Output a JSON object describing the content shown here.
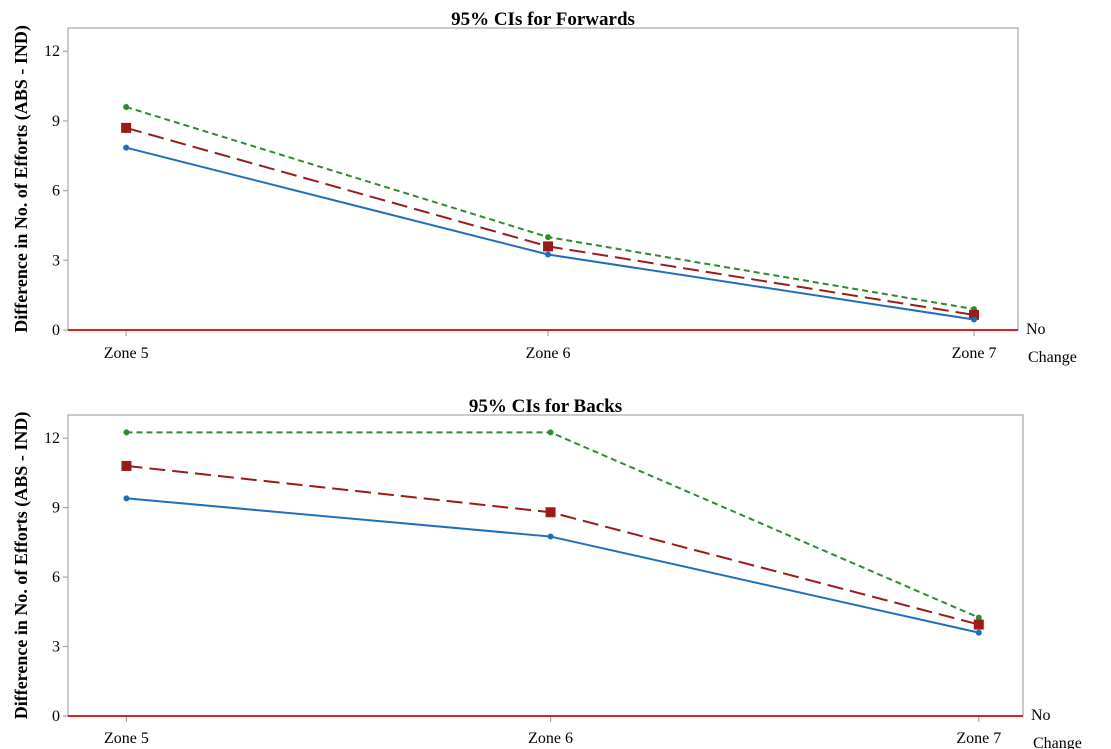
{
  "colors": {
    "lower": "#1f6fb8",
    "mean": "#9b1a1a",
    "upper": "#2e8b2e",
    "reference": "#e02020",
    "frame": "#a6a6a6"
  },
  "no_change_label": [
    "No",
    "Change"
  ],
  "chart_data": [
    {
      "type": "line",
      "title": "95% CIs for Forwards",
      "ylabel": "Difference in No. of Efforts (ABS - IND)",
      "xlabel": "",
      "categories": [
        "Zone 5",
        "Zone 6",
        "Zone 7"
      ],
      "ylim": [
        0,
        13
      ],
      "yticks": [
        0,
        3,
        6,
        9,
        12
      ],
      "reference_line": 0,
      "grid": false,
      "series": [
        {
          "key": "upper",
          "style": "short-dash",
          "marker": "dot",
          "values": [
            9.6,
            4.0,
            0.9
          ]
        },
        {
          "key": "mean",
          "style": "long-dash",
          "marker": "square",
          "values": [
            8.7,
            3.6,
            0.65
          ]
        },
        {
          "key": "lower",
          "style": "solid",
          "marker": "dot",
          "values": [
            7.85,
            3.25,
            0.45
          ]
        }
      ]
    },
    {
      "type": "line",
      "title": "95% CIs for Backs",
      "ylabel": "Difference in No. of Efforts (ABS - IND)",
      "xlabel": "",
      "categories": [
        "Zone 5",
        "Zone 6",
        "Zone 7"
      ],
      "ylim": [
        0,
        13
      ],
      "yticks": [
        0,
        3,
        6,
        9,
        12
      ],
      "reference_line": 0,
      "grid": false,
      "series": [
        {
          "key": "upper",
          "style": "short-dash",
          "marker": "dot",
          "values": [
            12.25,
            12.25,
            4.25
          ]
        },
        {
          "key": "mean",
          "style": "long-dash",
          "marker": "square",
          "values": [
            10.8,
            8.8,
            3.95
          ]
        },
        {
          "key": "lower",
          "style": "solid",
          "marker": "dot",
          "values": [
            9.4,
            7.75,
            3.6
          ]
        }
      ]
    }
  ]
}
